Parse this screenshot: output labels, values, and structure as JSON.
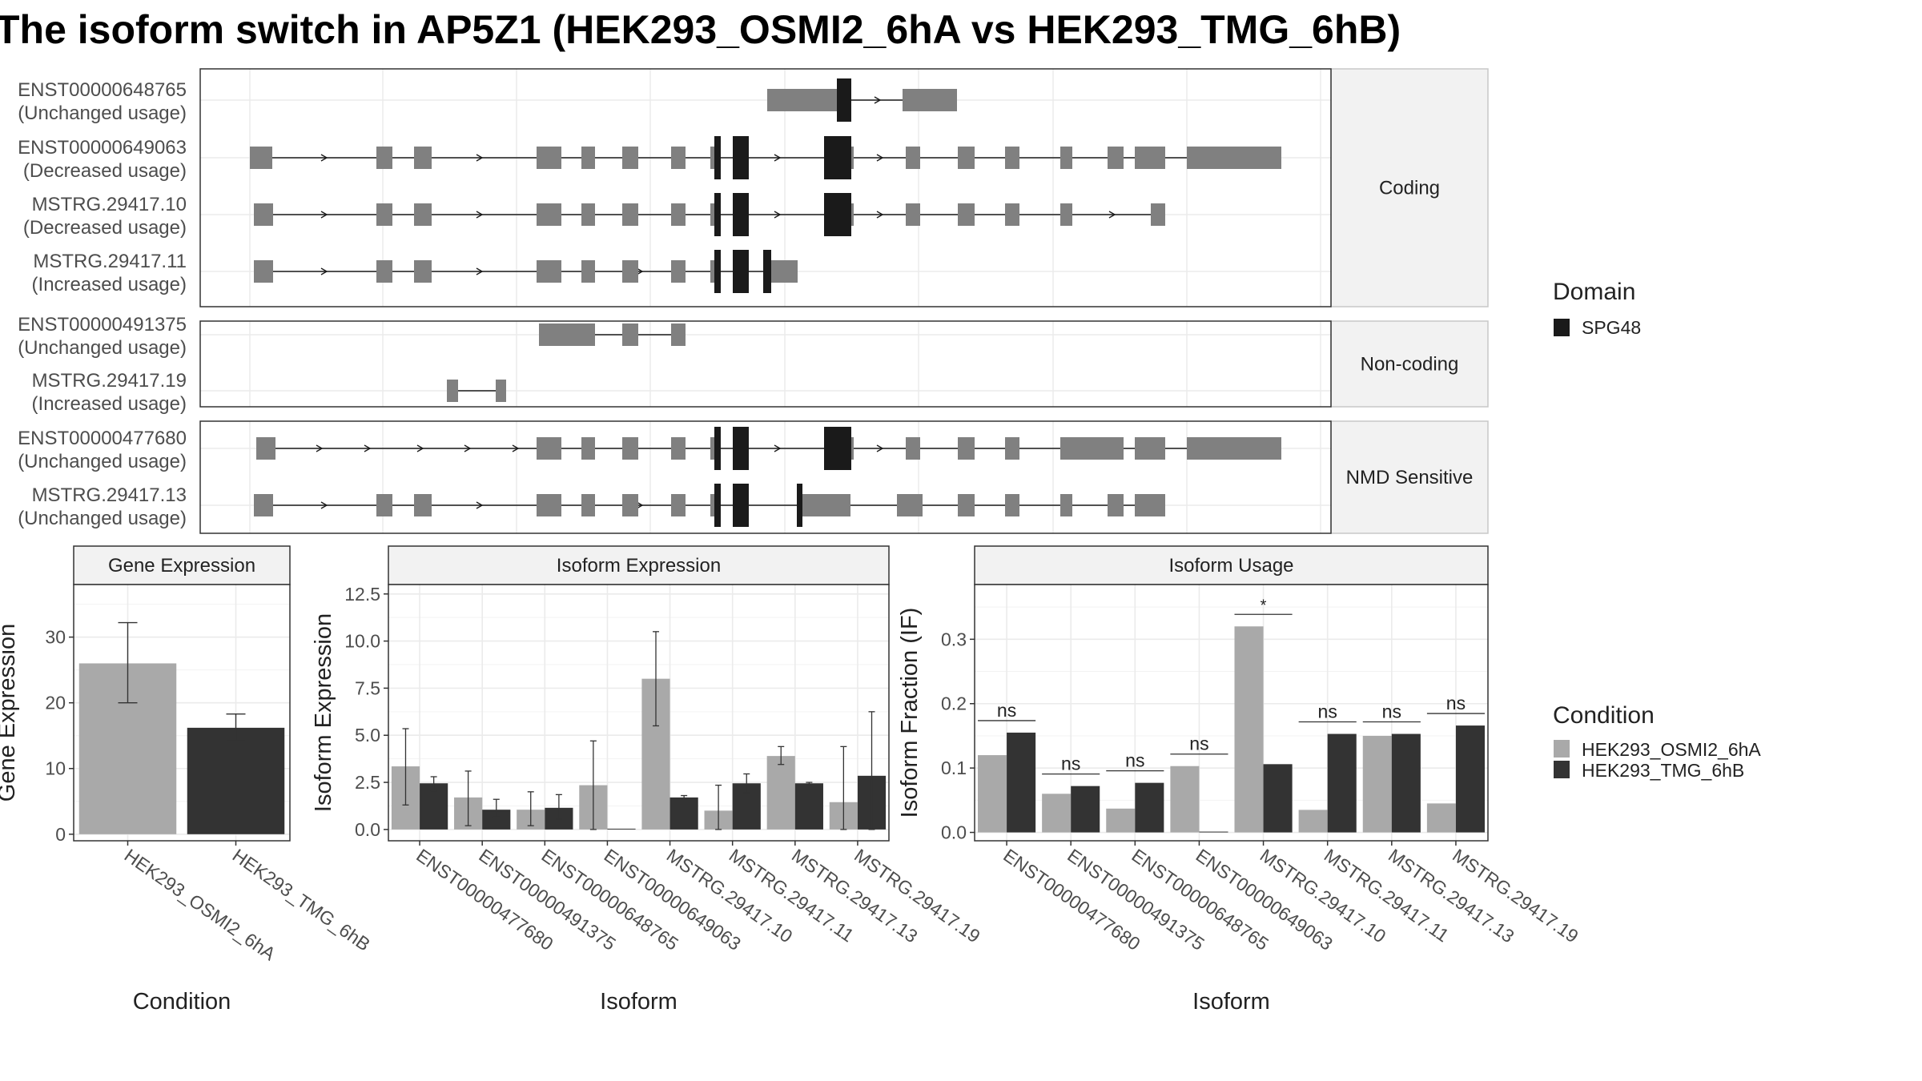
{
  "figure": {
    "title": "The isoform switch in AP5Z1 (HEK293_OSMI2_6hA vs HEK293_TMG_6hB)"
  },
  "colors": {
    "exon": "#808080",
    "domain": "#1a1a1a",
    "condition_a": "#a9a9a9",
    "condition_b": "#333333",
    "strip": "#f2f2f2",
    "grid": "#ebebeb"
  },
  "chart_data": [
    {
      "type": "gene_structure",
      "panels": [
        {
          "label": "Coding",
          "isoforms": [
            {
              "id": "ENST00000648765",
              "usage": "(Unchanged usage)"
            },
            {
              "id": "ENST00000649063",
              "usage": "(Decreased usage)"
            },
            {
              "id": "MSTRG.29417.10",
              "usage": "(Decreased usage)"
            },
            {
              "id": "MSTRG.29417.11",
              "usage": "(Increased usage)"
            }
          ]
        },
        {
          "label": "Non-coding",
          "isoforms": [
            {
              "id": "ENST00000491375",
              "usage": "(Unchanged usage)"
            },
            {
              "id": "MSTRG.29417.19",
              "usage": "(Increased usage)"
            }
          ]
        },
        {
          "label": "NMD Sensitive",
          "isoforms": [
            {
              "id": "ENST00000477680",
              "usage": "(Unchanged usage)"
            },
            {
              "id": "MSTRG.29417.13",
              "usage": "(Unchanged usage)"
            }
          ]
        }
      ],
      "legend": {
        "title": "Domain",
        "items": [
          "SPG48"
        ]
      }
    },
    {
      "type": "bar",
      "panel_title": "Gene Expression",
      "xlabel": "Condition",
      "ylabel": "Gene Expression",
      "categories": [
        "HEK293_OSMI2_6hA",
        "HEK293_TMG_6hB"
      ],
      "values": [
        26.0,
        16.2
      ],
      "errors": [
        [
          20.0,
          32.2
        ],
        [
          14.2,
          18.3
        ]
      ],
      "ylim": [
        -1,
        38
      ],
      "yticks": [
        0,
        10,
        20,
        30
      ]
    },
    {
      "type": "bar",
      "panel_title": "Isoform Expression",
      "xlabel": "Isoform",
      "ylabel": "Isoform Expression",
      "categories": [
        "ENST00000477680",
        "ENST00000491375",
        "ENST00000648765",
        "ENST00000649063",
        "MSTRG.29417.10",
        "MSTRG.29417.11",
        "MSTRG.29417.13",
        "MSTRG.29417.19"
      ],
      "series": [
        {
          "name": "HEK293_OSMI2_6hA",
          "values": [
            3.35,
            1.7,
            1.05,
            2.35,
            8.0,
            1.0,
            3.9,
            1.45
          ],
          "errors": [
            [
              1.3,
              5.35
            ],
            [
              0.2,
              3.1
            ],
            [
              0.2,
              2.0
            ],
            [
              0.0,
              4.7
            ],
            [
              5.5,
              10.5
            ],
            [
              0.0,
              2.35
            ],
            [
              3.45,
              4.4
            ],
            [
              0.0,
              4.4
            ]
          ]
        },
        {
          "name": "HEK293_TMG_6hB",
          "values": [
            2.45,
            1.05,
            1.15,
            0.0,
            1.7,
            2.45,
            2.45,
            2.85
          ],
          "errors": [
            [
              2.05,
              2.8
            ],
            [
              0.65,
              1.6
            ],
            [
              0.55,
              1.85
            ],
            [
              0.0,
              0.0
            ],
            [
              1.6,
              1.8
            ],
            [
              1.95,
              2.95
            ],
            [
              2.4,
              2.5
            ],
            [
              0.0,
              6.25
            ]
          ]
        }
      ],
      "ylim": [
        -0.6,
        13.0
      ],
      "yticks": [
        0.0,
        2.5,
        5.0,
        7.5,
        10.0,
        12.5
      ]
    },
    {
      "type": "bar",
      "panel_title": "Isoform Usage",
      "xlabel": "Isoform",
      "ylabel": "Isoform Fraction (IF)",
      "categories": [
        "ENST00000477680",
        "ENST00000491375",
        "ENST00000648765",
        "ENST00000649063",
        "MSTRG.29417.10",
        "MSTRG.29417.11",
        "MSTRG.29417.13",
        "MSTRG.29417.19"
      ],
      "series": [
        {
          "name": "HEK293_OSMI2_6hA",
          "values": [
            0.12,
            0.06,
            0.037,
            0.103,
            0.32,
            0.035,
            0.15,
            0.045
          ]
        },
        {
          "name": "HEK293_TMG_6hB",
          "values": [
            0.155,
            0.072,
            0.077,
            0.0,
            0.106,
            0.153,
            0.153,
            0.166
          ]
        }
      ],
      "significance": [
        "ns",
        "ns",
        "ns",
        "ns",
        "*",
        "ns",
        "ns",
        "ns"
      ],
      "ylim": [
        -0.013,
        0.385
      ],
      "yticks": [
        0.0,
        0.1,
        0.2,
        0.3
      ]
    }
  ],
  "condition_legend": {
    "title": "Condition",
    "items": [
      "HEK293_OSMI2_6hA",
      "HEK293_TMG_6hB"
    ]
  }
}
